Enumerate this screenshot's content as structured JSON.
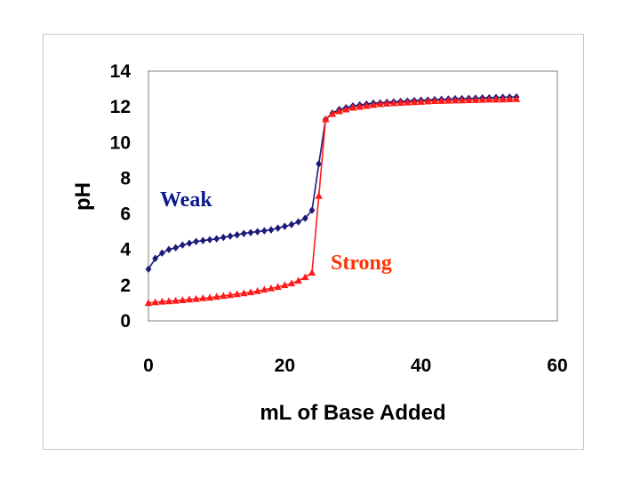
{
  "chart_data": {
    "type": "line",
    "title": "",
    "xlabel": "mL of Base Added",
    "ylabel": "pH",
    "xlim": [
      0,
      60
    ],
    "ylim": [
      0,
      14
    ],
    "xticks": [
      0,
      20,
      40,
      60
    ],
    "yticks": [
      0,
      2,
      4,
      6,
      8,
      10,
      12,
      14
    ],
    "grid": "none",
    "series": [
      {
        "name": "Weak",
        "color": "#1a1a7a",
        "marker": "diamond",
        "x": [
          0,
          1,
          2,
          3,
          4,
          5,
          6,
          7,
          8,
          9,
          10,
          11,
          12,
          13,
          14,
          15,
          16,
          17,
          18,
          19,
          20,
          21,
          22,
          23,
          24,
          25,
          26,
          27,
          28,
          29,
          30,
          31,
          32,
          33,
          34,
          35,
          36,
          37,
          38,
          39,
          40,
          41,
          42,
          43,
          44,
          45,
          46,
          47,
          48,
          49,
          50,
          51,
          52,
          53,
          54
        ],
        "y": [
          2.9,
          3.5,
          3.8,
          4.0,
          4.1,
          4.25,
          4.35,
          4.45,
          4.5,
          4.55,
          4.6,
          4.68,
          4.75,
          4.82,
          4.9,
          4.95,
          5.0,
          5.05,
          5.1,
          5.2,
          5.3,
          5.4,
          5.55,
          5.75,
          6.2,
          8.8,
          11.3,
          11.65,
          11.85,
          11.95,
          12.05,
          12.1,
          12.15,
          12.2,
          12.22,
          12.25,
          12.28,
          12.3,
          12.32,
          12.35,
          12.37,
          12.38,
          12.4,
          12.42,
          12.43,
          12.45,
          12.46,
          12.47,
          12.48,
          12.5,
          12.5,
          12.52,
          12.53,
          12.54,
          12.55
        ]
      },
      {
        "name": "Strong",
        "color": "#ff1a1a",
        "marker": "triangle",
        "x": [
          0,
          1,
          2,
          3,
          4,
          5,
          6,
          7,
          8,
          9,
          10,
          11,
          12,
          13,
          14,
          15,
          16,
          17,
          18,
          19,
          20,
          21,
          22,
          23,
          24,
          25,
          26,
          27,
          28,
          29,
          30,
          31,
          32,
          33,
          34,
          35,
          36,
          37,
          38,
          39,
          40,
          41,
          42,
          43,
          44,
          45,
          46,
          47,
          48,
          49,
          50,
          51,
          52,
          53,
          54
        ],
        "y": [
          1.0,
          1.04,
          1.08,
          1.1,
          1.13,
          1.16,
          1.2,
          1.23,
          1.27,
          1.3,
          1.35,
          1.4,
          1.45,
          1.5,
          1.55,
          1.6,
          1.67,
          1.75,
          1.82,
          1.9,
          2.0,
          2.1,
          2.25,
          2.45,
          2.7,
          7.0,
          11.3,
          11.6,
          11.75,
          11.85,
          11.95,
          12.0,
          12.05,
          12.1,
          12.15,
          12.18,
          12.2,
          12.22,
          12.24,
          12.26,
          12.28,
          12.3,
          12.32,
          12.33,
          12.34,
          12.35,
          12.36,
          12.37,
          12.38,
          12.39,
          12.4,
          12.4,
          12.41,
          12.42,
          12.43
        ]
      }
    ],
    "annotations": [
      {
        "text": "Weak",
        "series": "Weak"
      },
      {
        "text": "Strong",
        "series": "Strong"
      }
    ]
  }
}
